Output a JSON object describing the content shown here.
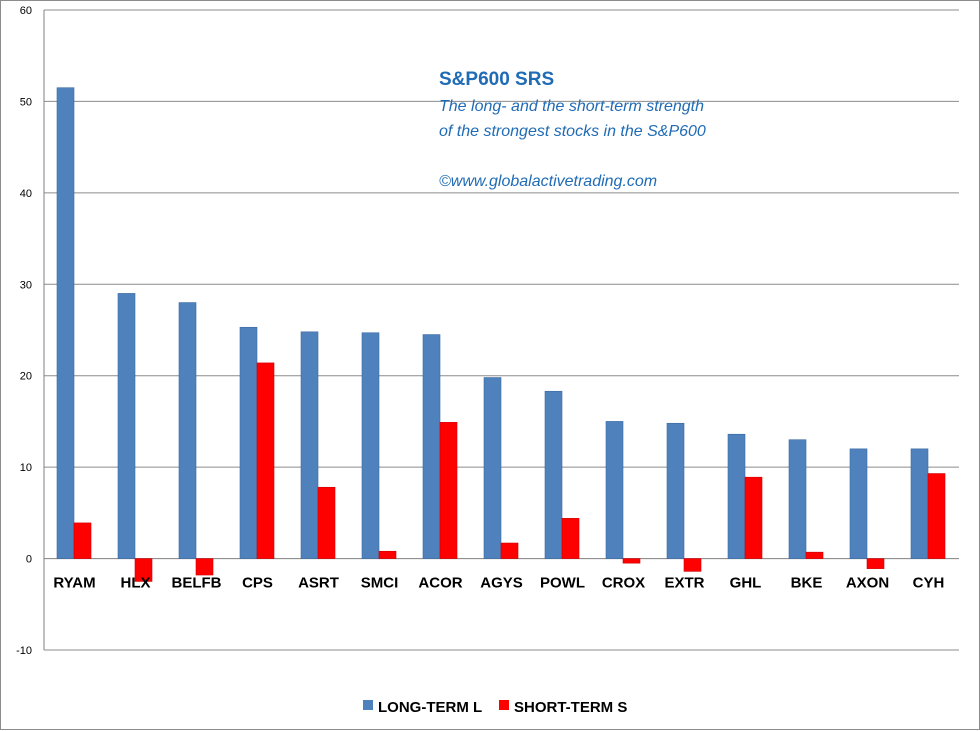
{
  "chart_data": {
    "type": "bar",
    "title": "S&P600 SRS",
    "subtitle_lines": [
      "The long- and the short-term  strength",
      "of the  strongest stocks in the S&P600"
    ],
    "credit": "©www.globalactivetrading.com",
    "categories": [
      "RYAM",
      "HLX",
      "BELFB",
      "CPS",
      "ASRT",
      "SMCI",
      "ACOR",
      "AGYS",
      "POWL",
      "CROX",
      "EXTR",
      "GHL",
      "BKE",
      "AXON",
      "CYH"
    ],
    "series": [
      {
        "name": "LONG-TERM L",
        "color": "#4f81bd",
        "values": [
          51.5,
          29,
          28,
          25.3,
          24.8,
          24.7,
          24.5,
          19.8,
          18.3,
          15,
          14.8,
          13.6,
          13,
          12,
          12
        ]
      },
      {
        "name": "SHORT-TERM S",
        "color": "#ff0000",
        "values": [
          3.9,
          -2.5,
          -1.8,
          21.4,
          7.8,
          0.8,
          14.9,
          1.7,
          4.4,
          -0.5,
          -1.4,
          8.9,
          0.7,
          -1.1,
          9.3
        ]
      }
    ],
    "ylim": [
      -10,
      60
    ],
    "yticks": [
      -10,
      0,
      10,
      20,
      30,
      40,
      50,
      60
    ],
    "grid": true,
    "legend_position": "bottom"
  }
}
